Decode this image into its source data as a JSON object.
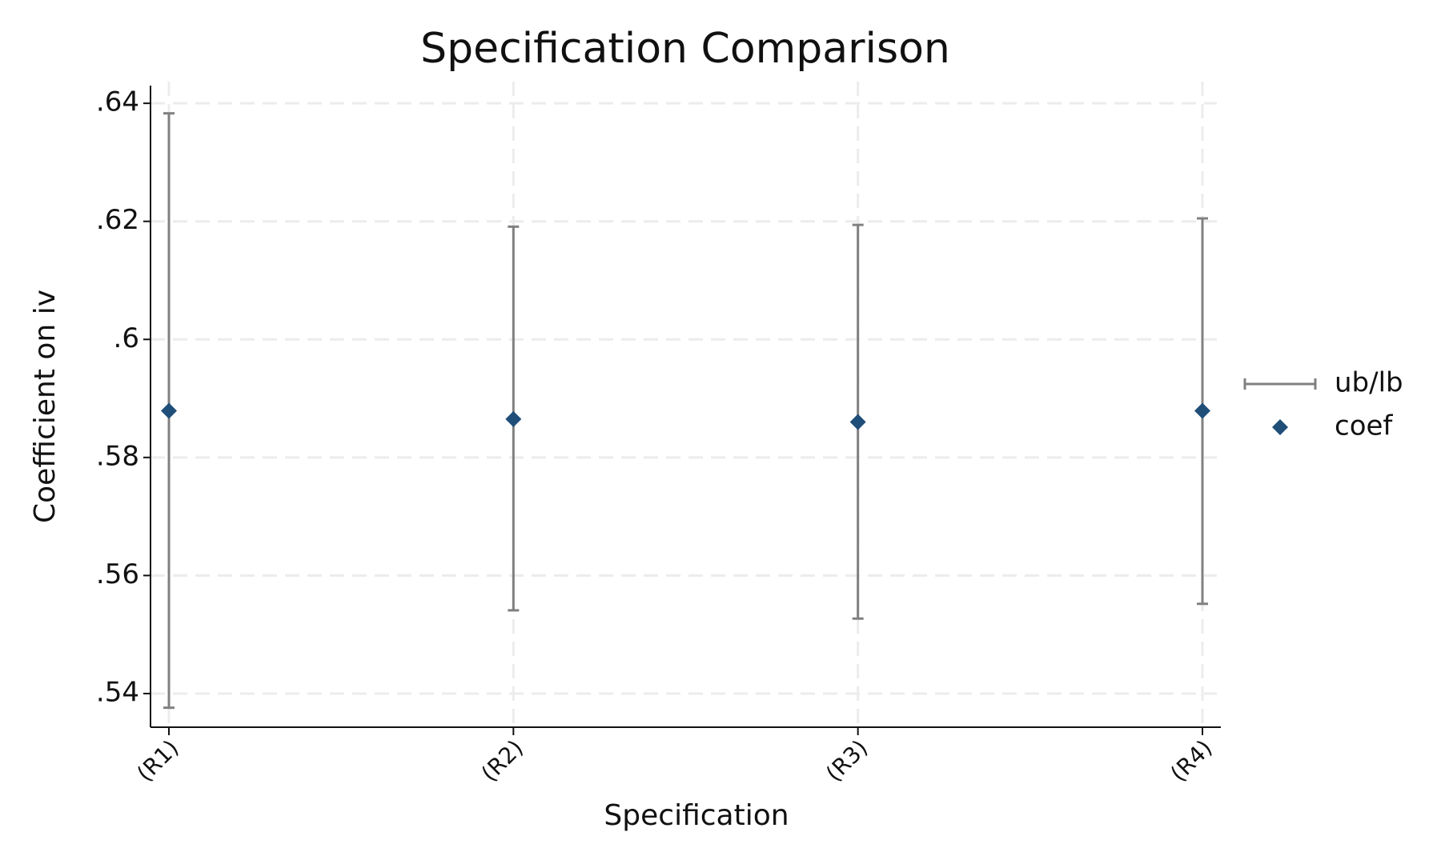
{
  "chart_data": {
    "type": "errorbar",
    "title": "Specification Comparison",
    "x_label": "Specification",
    "y_label": "Coefficient on iv",
    "categories": [
      "(R1)",
      "(R2)",
      "(R3)",
      "(R4)"
    ],
    "series": [
      {
        "name": "ub/lb",
        "color": "#808080",
        "upper": [
          0.6383,
          0.6191,
          0.6194,
          0.6205
        ],
        "lower": [
          0.5376,
          0.5541,
          0.5527,
          0.5552
        ]
      },
      {
        "name": "coef",
        "color": "#1f4e79",
        "values": [
          0.5879,
          0.5865,
          0.586,
          0.5879
        ]
      }
    ],
    "ylim": [
      0.5343,
      0.643
    ],
    "yticks": [
      {
        "value": 0.54,
        "label": ".54"
      },
      {
        "value": 0.56,
        "label": ".56"
      },
      {
        "value": 0.58,
        "label": ".58"
      },
      {
        "value": 0.6,
        "label": ".6"
      },
      {
        "value": 0.62,
        "label": ".62"
      },
      {
        "value": 0.64,
        "label": ".64"
      }
    ],
    "grid": true,
    "legend": "right"
  }
}
